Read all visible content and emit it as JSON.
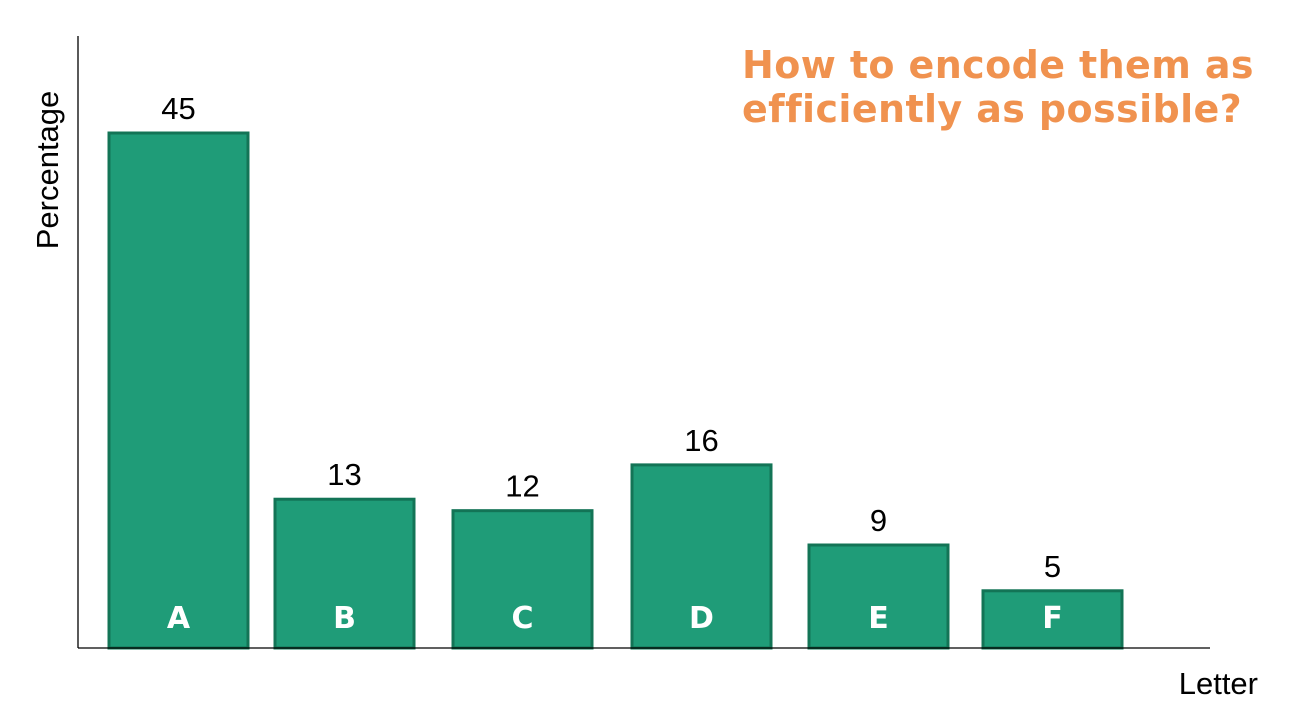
{
  "annotation": {
    "line1": "How to encode them as",
    "line2": "efficiently as possible?"
  },
  "colors": {
    "bar_fill": "#1F9C78",
    "bar_stroke": "#137456",
    "annotation": "#F0924F",
    "axis": "#000000",
    "bar_text": "#FFFFFF"
  },
  "chart_data": {
    "type": "bar",
    "categories": [
      "A",
      "B",
      "C",
      "D",
      "E",
      "F"
    ],
    "values": [
      45,
      13,
      12,
      16,
      9,
      5
    ],
    "xlabel": "Letter",
    "ylabel": "Percentage",
    "ylim": [
      0,
      50
    ],
    "grid": false,
    "legend": "none",
    "data_labels": true,
    "category_labels_inside_bars": true
  }
}
